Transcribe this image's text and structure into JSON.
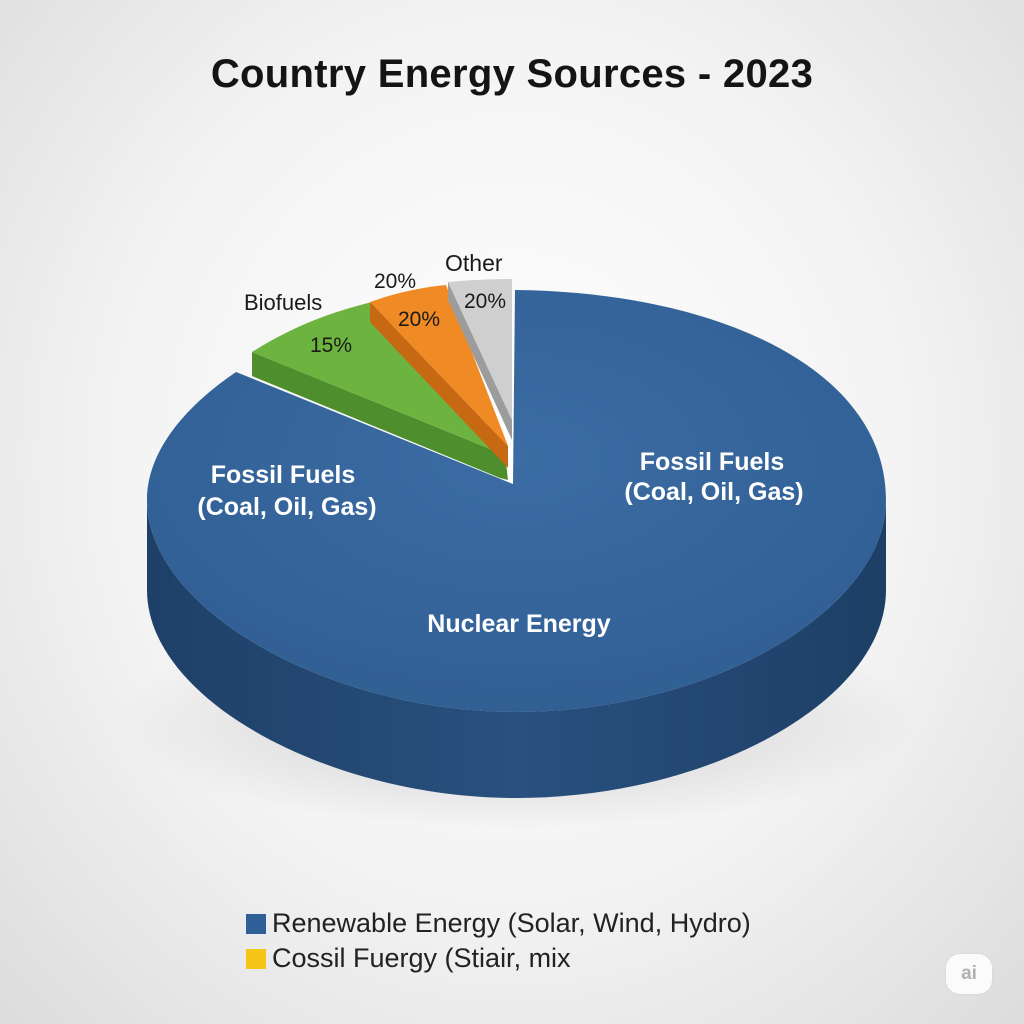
{
  "chart_data": {
    "type": "pie",
    "title": "Country Energy Sources - 2023",
    "slices": [
      {
        "id": "main",
        "color": "#34649a",
        "label_lines": []
      },
      {
        "id": "biofuels",
        "label": "Biofuels",
        "value_label": "15%",
        "color": "#6db33f"
      },
      {
        "id": "orange",
        "label": "20%",
        "value_label": "20%",
        "color": "#f08a24"
      },
      {
        "id": "other",
        "label": "Other",
        "value_label": "20%",
        "color": "#cfcfcf"
      }
    ],
    "annotations": {
      "left_line1": "Fossil Fuels",
      "left_line2": "(Coal, Oil, Gas)",
      "right_line1": "Fossil Fuels",
      "right_line2": "(Coal, Oil, Gas)",
      "center": "Nuclear Energy"
    },
    "legend": [
      {
        "label": "Renewable Energy (Solar, Wind, Hydro)",
        "color": "#2f5f96"
      },
      {
        "label": "Cossil Fuergy (Stiair, mix",
        "color": "#f5c518"
      }
    ],
    "legend_placement": "bottom"
  },
  "watermark": "ai"
}
